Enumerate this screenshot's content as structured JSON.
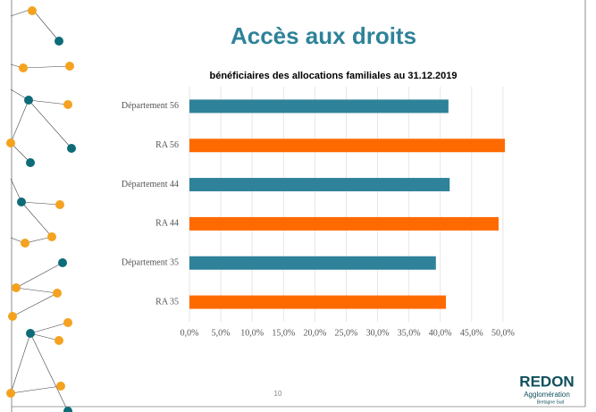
{
  "chart_data": {
    "type": "barh",
    "title": "Accès aux droits",
    "subtitle": "bénéficiaires des allocations familiales au 31.12.2019",
    "categories": [
      "Département 56",
      "RA 56",
      "Département 44",
      "RA 44",
      "Département 35",
      "RA 35"
    ],
    "values": [
      41.3,
      50.3,
      41.5,
      49.3,
      39.3,
      40.9
    ],
    "colors": [
      "#2e8299",
      "#ff6a00",
      "#2e8299",
      "#ff6a00",
      "#2e8299",
      "#ff6a00"
    ],
    "xlim": [
      0,
      55
    ],
    "xticks": [
      {
        "value": 0,
        "label": "0,0%"
      },
      {
        "value": 5,
        "label": "5,0%"
      },
      {
        "value": 10,
        "label": "10,0%"
      },
      {
        "value": 15,
        "label": "15,0%"
      },
      {
        "value": 20,
        "label": "20,0%"
      },
      {
        "value": 25,
        "label": "25,0%"
      },
      {
        "value": 30,
        "label": "30,0%"
      },
      {
        "value": 35,
        "label": "35,0%"
      },
      {
        "value": 40,
        "label": "40,0%"
      },
      {
        "value": 45,
        "label": "45,0%"
      },
      {
        "value": 50,
        "label": "50,0%"
      }
    ],
    "grid": true
  },
  "footer": {
    "page": "10",
    "logo": "REDON",
    "logo_sub": "Agglomération",
    "logo_sub2": "Bretagne Sud"
  }
}
